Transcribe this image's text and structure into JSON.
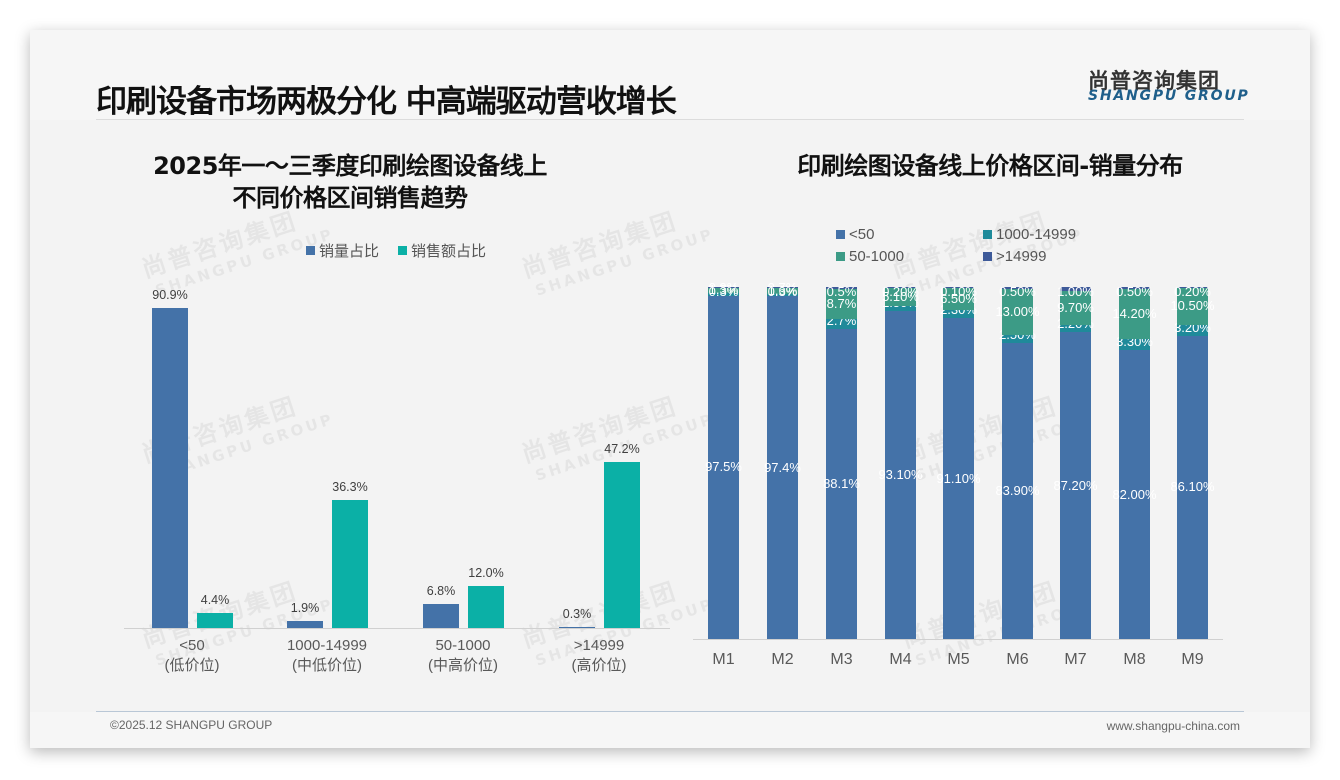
{
  "header": {
    "title": "印刷设备市场两极分化 中高端驱动营收增长",
    "logo_cn": "尚普咨询集团",
    "logo_en": "SHANGPU GROUP"
  },
  "watermark": {
    "cn": "尚普咨询集团",
    "en": "SHANGPU GROUP"
  },
  "footer": {
    "copyright": "©2025.12 SHANGPU GROUP",
    "website": "www.shangpu-china.com"
  },
  "colors": {
    "blue": "#4472a8",
    "teal": "#0bb0a6",
    "green": "#3c9b86",
    "darkteal": "#1f8a9a",
    "navy": "#3e5a99"
  },
  "chart_data": [
    {
      "type": "bar",
      "title": "2025年一～三季度印刷绘图设备线上不同价格区间销售趋势",
      "title_lines": [
        "2025年一～三季度印刷绘图设备线上",
        "不同价格区间销售趋势"
      ],
      "categories": [
        "<50",
        "1000-14999",
        "50-1000",
        ">14999"
      ],
      "category_sublabels": [
        "(低价位)",
        "(中低价位)",
        "(中高价位)",
        "(高价位)"
      ],
      "series": [
        {
          "name": "销量占比",
          "color": "#4472a8",
          "values": [
            90.9,
            1.9,
            6.8,
            0.3
          ],
          "labels": [
            "90.9%",
            "1.9%",
            "6.8%",
            "0.3%"
          ]
        },
        {
          "name": "销售额占比",
          "color": "#0bb0a6",
          "values": [
            4.4,
            36.3,
            12.0,
            47.2
          ],
          "labels": [
            "4.4%",
            "36.3%",
            "12.0%",
            "47.2%"
          ]
        }
      ],
      "xlabel": "",
      "ylabel": "",
      "ylim": [
        0,
        100
      ],
      "grid": false,
      "legend_position": "top",
      "unit": "%"
    },
    {
      "type": "bar",
      "stacked": true,
      "title": "印刷绘图设备线上价格区间-销量分布",
      "categories": [
        "M1",
        "M2",
        "M3",
        "M4",
        "M5",
        "M6",
        "M7",
        "M8",
        "M9"
      ],
      "series": [
        {
          "name": "<50",
          "color": "#4472a8",
          "values": [
            97.5,
            97.4,
            88.1,
            93.1,
            91.1,
            83.9,
            87.2,
            82.0,
            86.1
          ],
          "labels": [
            "97.5%",
            "97.4%",
            "88.1%",
            "93.10%",
            "91.10%",
            "83.90%",
            "87.20%",
            "82.00%",
            "86.10%"
          ]
        },
        {
          "name": "1000-14999",
          "color": "#1f8a9a",
          "values": [
            0.9,
            0.7,
            2.7,
            1.5,
            2.3,
            2.5,
            2.2,
            3.3,
            3.2
          ],
          "labels": [
            "0.9%",
            "0.7%",
            "2.7%",
            "1.50%",
            "2.30%",
            "2.50%",
            "2.20%",
            "3.30%",
            "3.20%"
          ]
        },
        {
          "name": "50-1000",
          "color": "#3c9b86",
          "values": [
            1.3,
            1.6,
            8.7,
            5.1,
            6.5,
            13.0,
            9.7,
            14.2,
            10.5
          ],
          "labels": [
            "1.3%",
            "1.6%",
            "8.7%",
            "5.10%",
            "6.50%",
            "13.00%",
            "9.70%",
            "14.20%",
            "10.50%"
          ]
        },
        {
          "name": ">14999",
          "color": "#3e5a99",
          "values": [
            0.3,
            0.3,
            0.5,
            0.2,
            0.1,
            0.5,
            1.0,
            0.5,
            0.2
          ],
          "labels": [
            "0.3%",
            "0.3%",
            "0.5%",
            "0.20%",
            "0.10%",
            "0.50%",
            "1.00%",
            "0.50%",
            "0.20%"
          ]
        }
      ],
      "xlabel": "",
      "ylabel": "",
      "ylim": [
        0,
        100
      ],
      "grid": false,
      "legend_position": "top",
      "unit": "%"
    }
  ]
}
